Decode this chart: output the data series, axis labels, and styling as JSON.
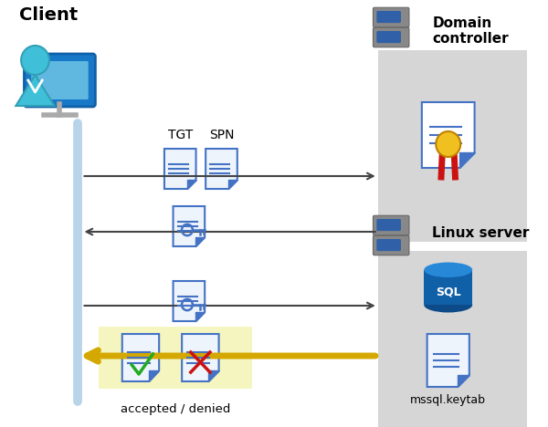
{
  "bg_color": "#ffffff",
  "client_label": "Client",
  "domain_label": "Domain\ncontroller",
  "linux_label": "Linux server",
  "tgt_label": "TGT",
  "spn_label": "SPN",
  "accepted_denied_label": "accepted / denied",
  "mssql_label": "mssql.keytab",
  "sql_label": "SQL",
  "gray_box_color": "#d6d6d6",
  "yellow_box_color": "#f5f5c0",
  "client_line_color": "#b8d4e8",
  "arrow_color": "#444444",
  "yellow_arrow_color": "#d4a800",
  "doc_color": "#4472c4",
  "doc_fill": "#eef4fc",
  "server_body": "#8a8a8a",
  "server_led": "#4472c4"
}
